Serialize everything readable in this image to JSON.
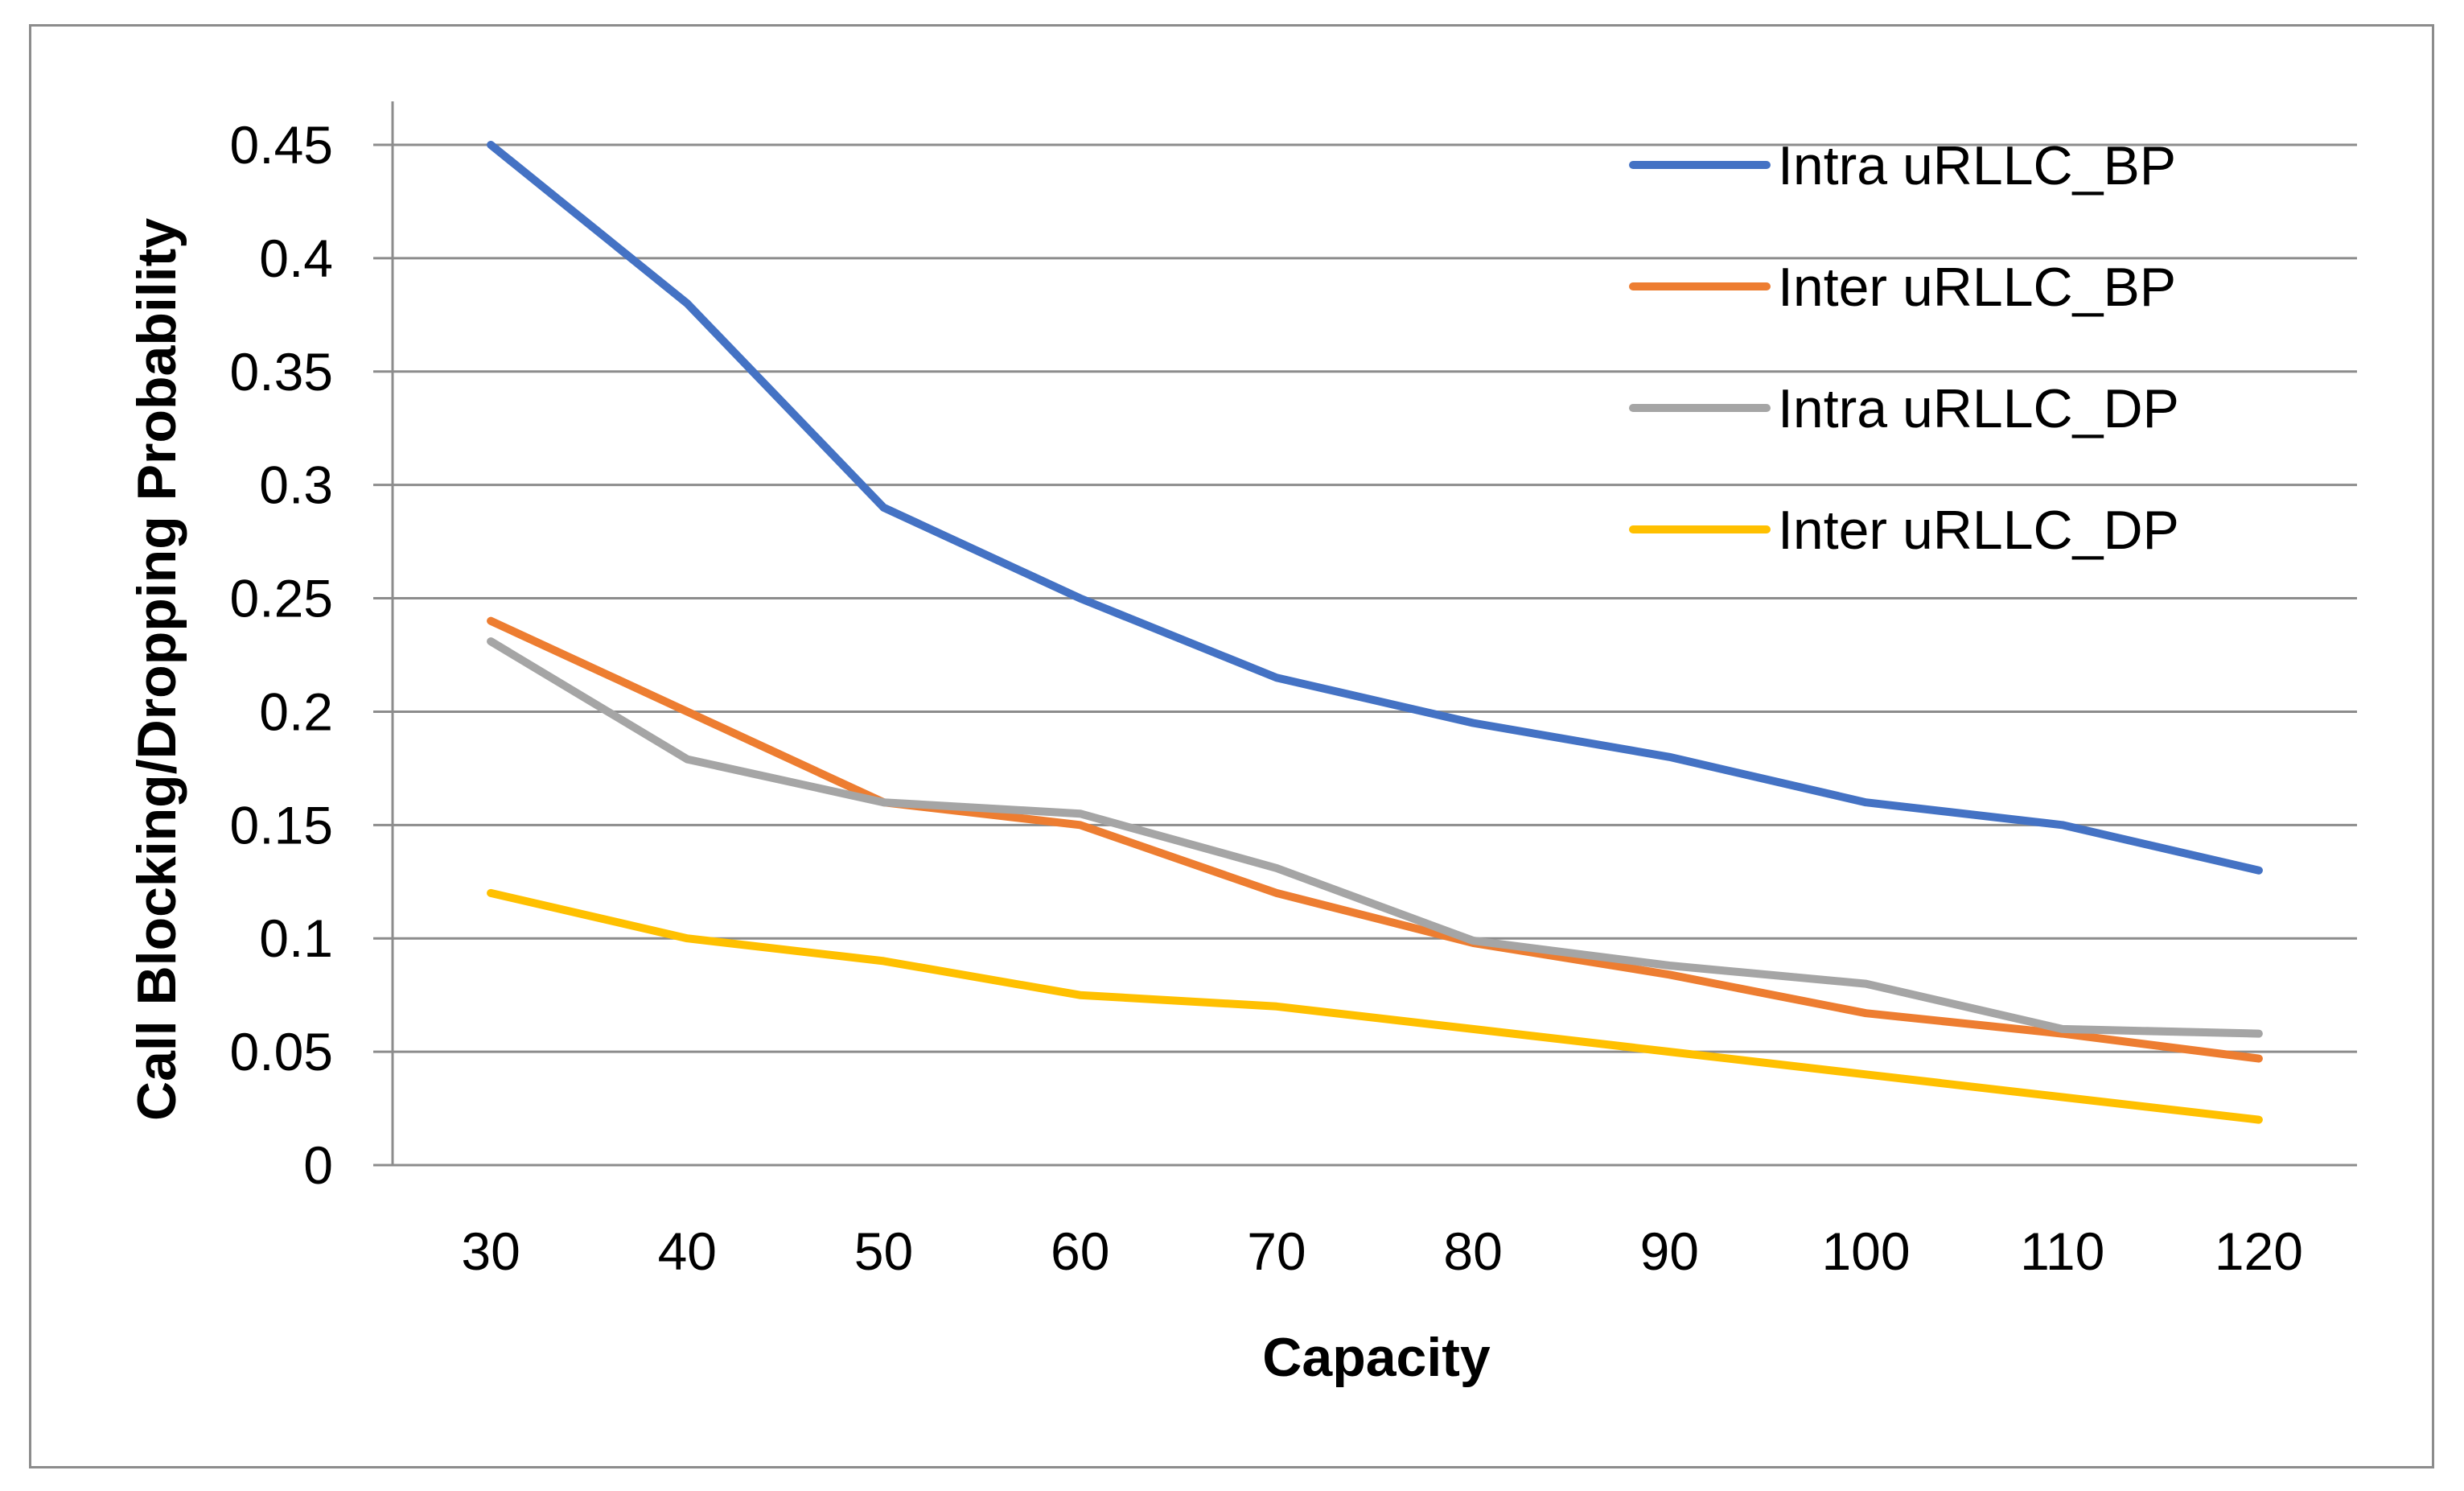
{
  "chart_data": {
    "type": "line",
    "title": "",
    "xlabel": "Capacity",
    "ylabel": "Call Blocking/Dropping Probability",
    "categories": [
      30,
      40,
      50,
      60,
      70,
      80,
      90,
      100,
      110,
      120
    ],
    "ylim": [
      0,
      0.45
    ],
    "yticks": [
      0,
      0.05,
      0.1,
      0.15,
      0.2,
      0.25,
      0.3,
      0.35,
      0.4,
      0.45
    ],
    "ytick_labels": [
      "0",
      "0.05",
      "0.1",
      "0.15",
      "0.2",
      "0.25",
      "0.3",
      "0.35",
      "0.4",
      "0.45"
    ],
    "grid": true,
    "legend_position": "top-right",
    "series": [
      {
        "name": "Intra uRLLC_BP",
        "color": "#4472C4",
        "values": [
          0.45,
          0.38,
          0.29,
          0.25,
          0.215,
          0.195,
          0.18,
          0.16,
          0.15,
          0.13
        ]
      },
      {
        "name": "Inter uRLLC_BP",
        "color": "#ED7D31",
        "values": [
          0.24,
          0.2,
          0.16,
          0.15,
          0.12,
          0.098,
          0.084,
          0.067,
          0.058,
          0.047
        ]
      },
      {
        "name": "Intra uRLLC_DP",
        "color": "#A5A5A5",
        "values": [
          0.231,
          0.179,
          0.16,
          0.155,
          0.131,
          0.099,
          0.088,
          0.08,
          0.06,
          0.058
        ]
      },
      {
        "name": "Inter uRLLC_DP",
        "color": "#FFC000",
        "values": [
          0.12,
          0.1,
          0.09,
          0.075,
          0.07,
          0.06,
          0.05,
          0.04,
          0.03,
          0.02
        ]
      }
    ]
  }
}
